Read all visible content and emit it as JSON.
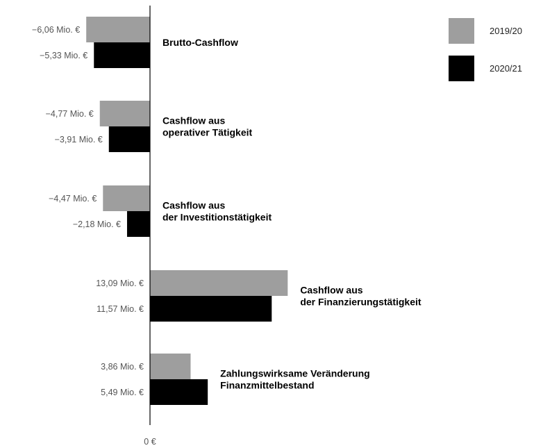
{
  "chart_data": {
    "type": "bar",
    "orientation": "horizontal",
    "title": "",
    "xlabel": "",
    "ylabel": "",
    "unit": "Mio. €",
    "zero_label": "0 €",
    "legend_position": "top-right",
    "grid": false,
    "categories": [
      [
        "Brutto-Cashflow"
      ],
      [
        "Cashflow aus",
        "operativer Tätigkeit"
      ],
      [
        "Cashflow aus",
        "der Investitionstätigkeit"
      ],
      [
        "Cashflow aus",
        "der Finanzierungstätigkeit"
      ],
      [
        "Zahlungswirksame Veränderung",
        "Finanzmittelbestand"
      ]
    ],
    "series": [
      {
        "name": "2019/20",
        "color": "#9e9e9e",
        "values": [
          -6.06,
          -4.77,
          -4.47,
          13.09,
          3.86
        ],
        "labels": [
          "−6,06 Mio. €",
          "−4,77 Mio. €",
          "−4,47 Mio. €",
          "13,09 Mio. €",
          "3,86 Mio. €"
        ]
      },
      {
        "name": "2020/21",
        "color": "#000000",
        "values": [
          -5.33,
          -3.91,
          -2.18,
          11.57,
          5.49
        ],
        "labels": [
          "−5,33 Mio. €",
          "−3,91 Mio. €",
          "−2,18 Mio. €",
          "11,57 Mio. €",
          "5,49 Mio. €"
        ]
      }
    ]
  }
}
